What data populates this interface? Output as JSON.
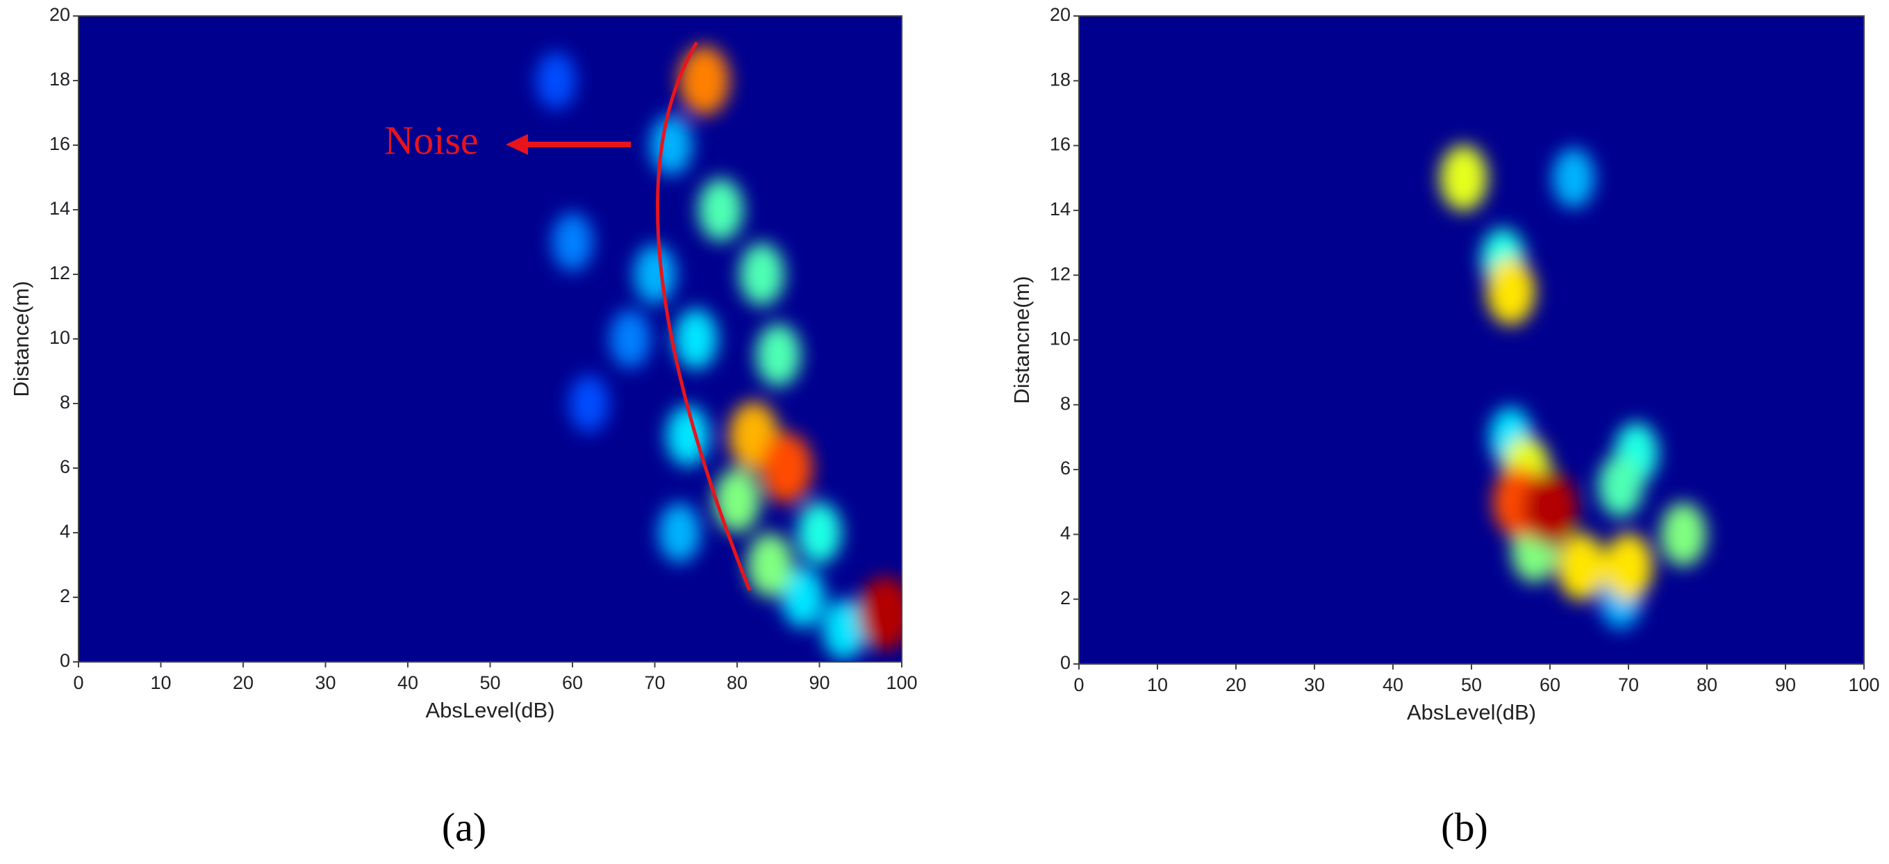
{
  "chart_data": [
    {
      "type": "heatmap",
      "caption": "(a)",
      "xlabel": "AbsLevel(dB)",
      "ylabel": "Distance(m)",
      "annotation": "Noise",
      "xlim": [
        0,
        100
      ],
      "xticks": [
        0,
        10,
        20,
        30,
        40,
        50,
        60,
        70,
        80,
        90,
        100
      ],
      "ylim": [
        0,
        20
      ],
      "yticks": [
        0,
        2,
        4,
        6,
        8,
        10,
        12,
        14,
        16,
        18,
        20
      ],
      "x": [
        58,
        60,
        67,
        62,
        72,
        70,
        73,
        75,
        74,
        93,
        88,
        78,
        83,
        85,
        90,
        80,
        84,
        82,
        76,
        86,
        98
      ],
      "y": [
        18,
        13,
        10,
        8,
        16,
        12,
        4,
        10,
        7,
        1,
        2,
        14,
        12,
        9.5,
        4,
        5,
        3,
        7,
        18,
        6,
        1.5
      ],
      "values": [
        0.2,
        0.25,
        0.25,
        0.2,
        0.3,
        0.3,
        0.3,
        0.35,
        0.35,
        0.35,
        0.35,
        0.45,
        0.45,
        0.45,
        0.4,
        0.5,
        0.5,
        0.7,
        0.75,
        0.8,
        0.95
      ]
    },
    {
      "type": "heatmap",
      "caption": "(b)",
      "xlabel": "AbsLevel(dB)",
      "ylabel": "Distancne(m)",
      "xlim": [
        0,
        100
      ],
      "xticks": [
        0,
        10,
        20,
        30,
        40,
        50,
        60,
        70,
        80,
        90,
        100
      ],
      "ylim": [
        0,
        20
      ],
      "yticks": [
        0,
        2,
        4,
        6,
        8,
        10,
        12,
        14,
        16,
        18,
        20
      ],
      "x": [
        63,
        69,
        55,
        54,
        71,
        69,
        58,
        77,
        49,
        57,
        55,
        64,
        70,
        56,
        60
      ],
      "y": [
        15,
        2,
        7,
        12.5,
        6.5,
        5.5,
        3.5,
        4,
        15,
        6,
        11.5,
        3,
        3,
        5,
        4.8
      ],
      "values": [
        0.3,
        0.3,
        0.35,
        0.4,
        0.4,
        0.45,
        0.5,
        0.5,
        0.6,
        0.6,
        0.65,
        0.65,
        0.65,
        0.8,
        0.95
      ]
    }
  ]
}
